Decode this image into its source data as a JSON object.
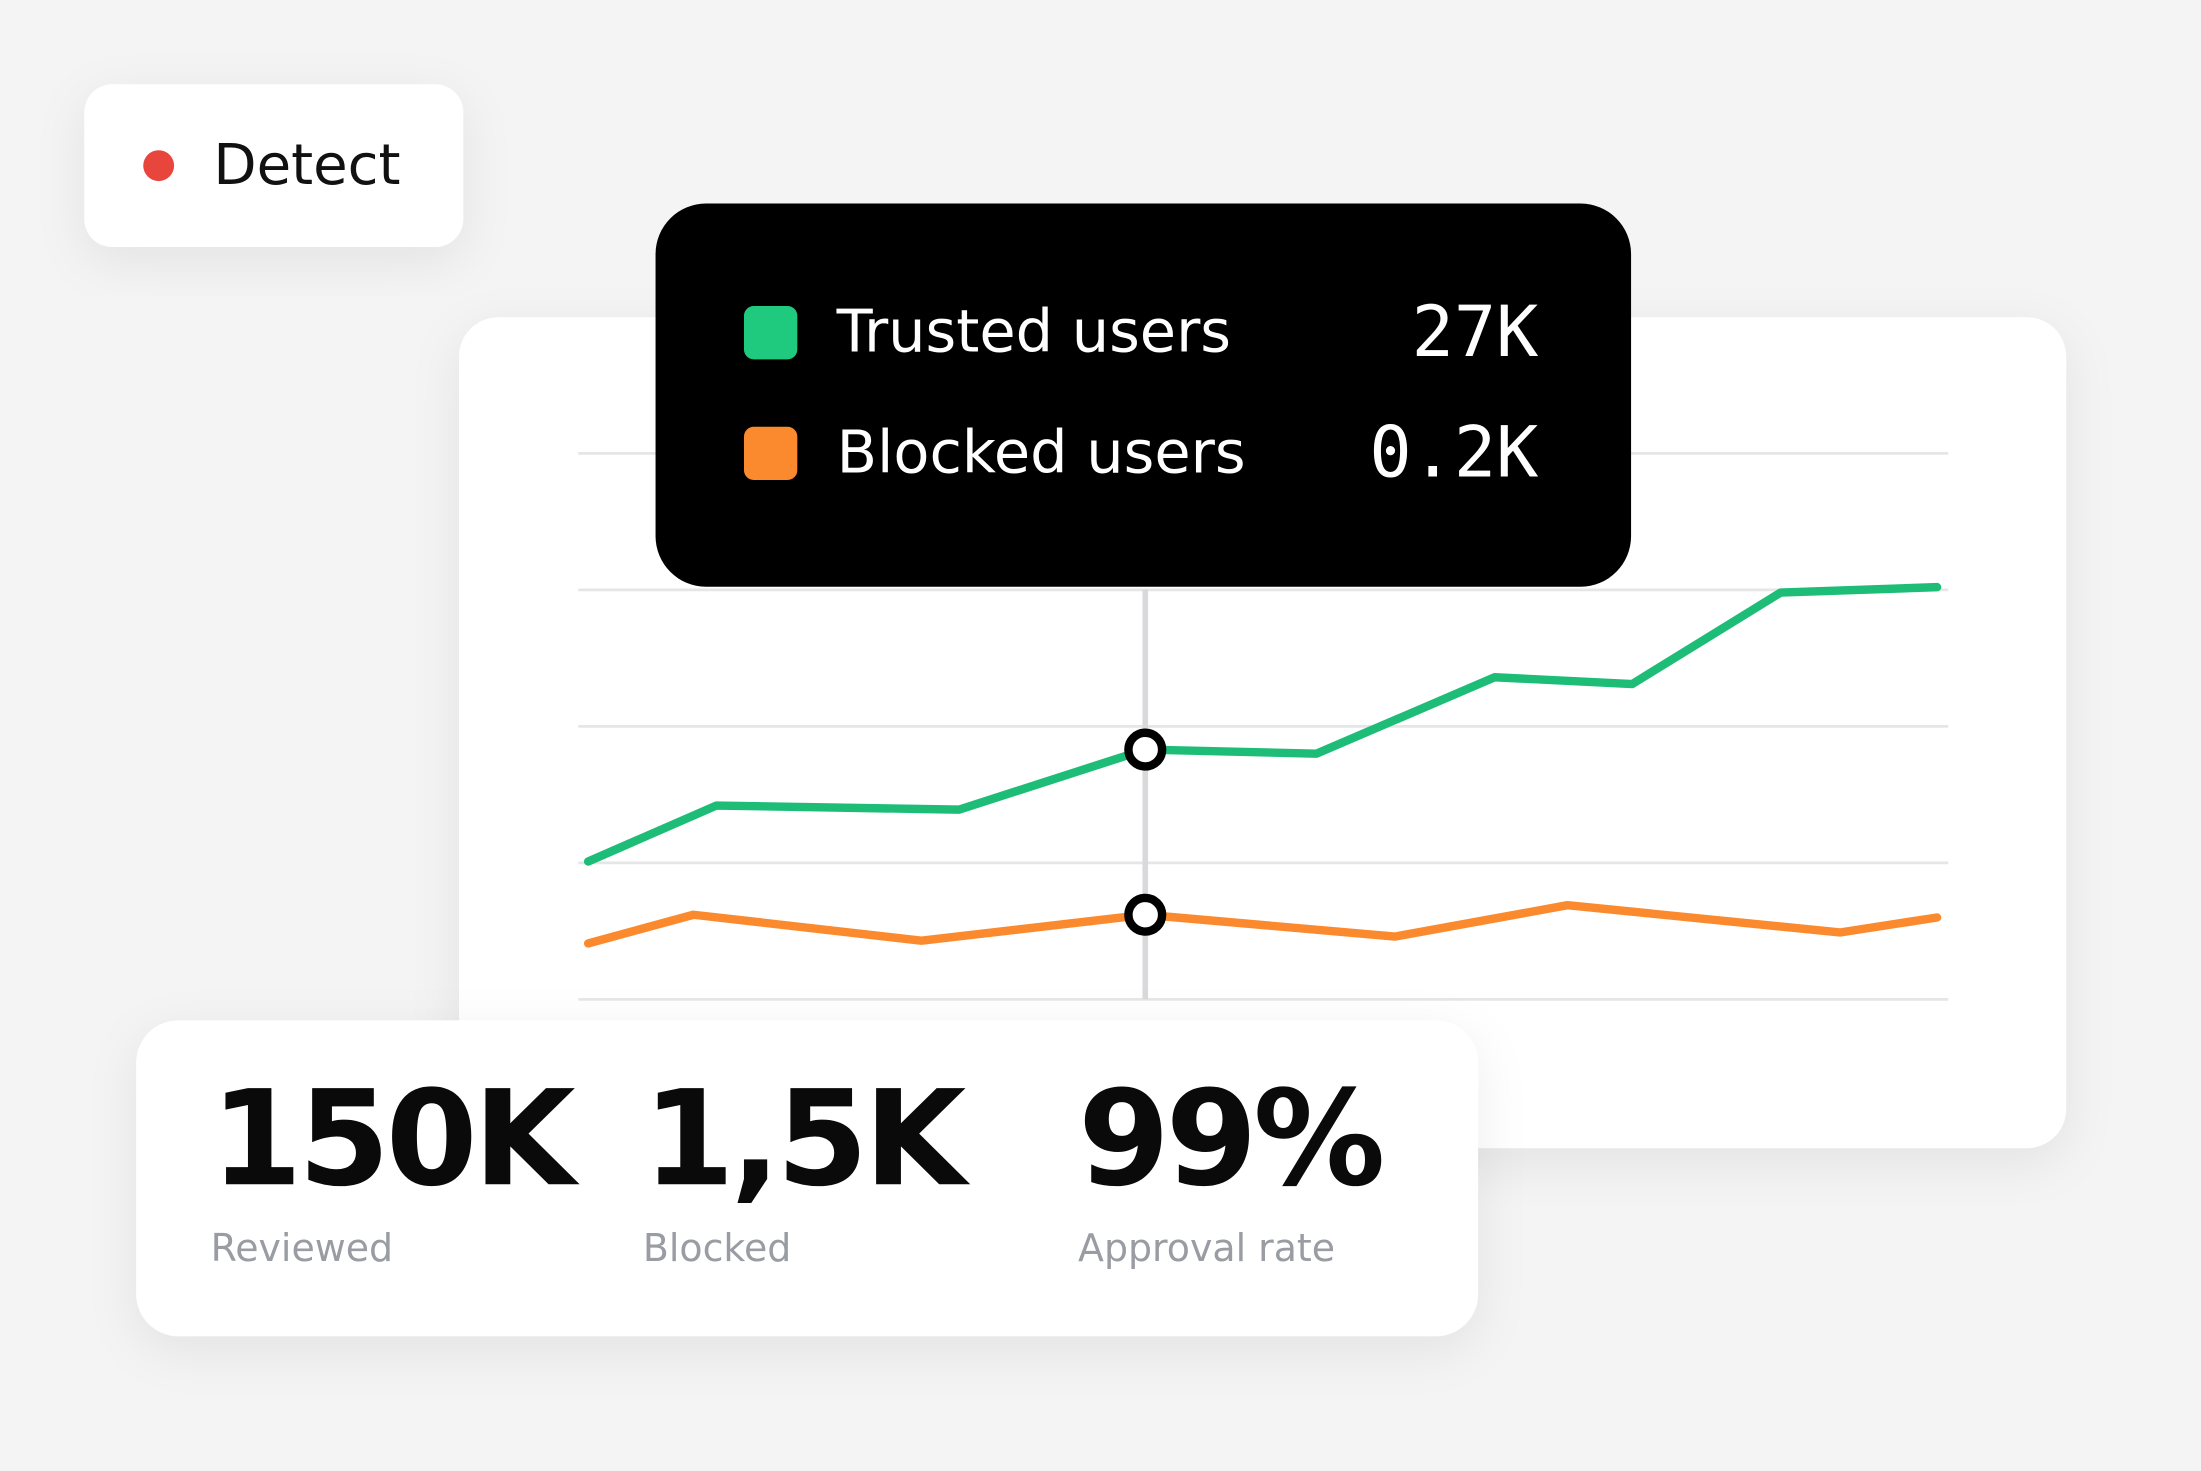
{
  "badge": {
    "label": "Detect"
  },
  "chart_data": {
    "type": "line",
    "xlim": [
      0,
      100
    ],
    "ylim": [
      0,
      4
    ],
    "gridlines": [
      0,
      1,
      2,
      3,
      4
    ],
    "hover_x": 41.3,
    "series": [
      {
        "name": "Trusted users",
        "color": "#1dbd78",
        "swatch": "#1fca7e",
        "tooltip_value": "27K",
        "x": [
          0,
          9.5,
          27.5,
          41.3,
          54,
          67.2,
          77.4,
          88.4,
          100
        ],
        "values": [
          1.01,
          1.42,
          1.39,
          1.83,
          1.8,
          2.36,
          2.31,
          2.98,
          3.02
        ]
      },
      {
        "name": "Blocked users",
        "color": "#fb8a2e",
        "swatch": "#fb8a2e",
        "tooltip_value": "0.2K",
        "x": [
          0,
          7.8,
          24.7,
          41.3,
          59.8,
          72.6,
          92.8,
          100
        ],
        "values": [
          0.41,
          0.62,
          0.43,
          0.62,
          0.46,
          0.69,
          0.49,
          0.6
        ]
      }
    ]
  },
  "stats": [
    {
      "value": "150K",
      "label": "Reviewed"
    },
    {
      "value": "1,5K",
      "label": "Blocked"
    },
    {
      "value": "99%",
      "label": "Approval rate"
    }
  ]
}
